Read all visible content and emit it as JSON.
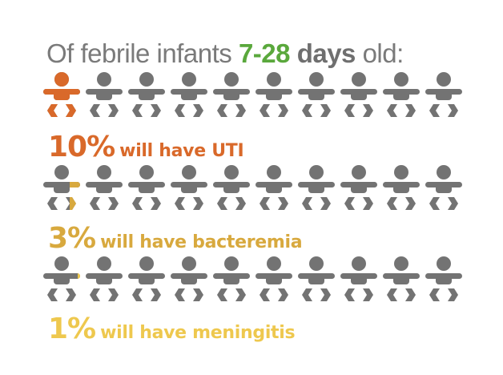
{
  "headline": {
    "prefix": "Of febrile infants ",
    "range": "7-28",
    "days": "days",
    "suffix": " old:"
  },
  "colors": {
    "icon_gray": "#737373",
    "uti": "#d9692a",
    "bacteremia": "#d8a93e",
    "meningitis": "#eec84e",
    "headline_green": "#5aa83c",
    "headline_gray": "#7a7a7a"
  },
  "icon_name": "baby-icon",
  "icons_per_row": 10,
  "rows": [
    {
      "id": "uti",
      "percent": "10%",
      "label": "will have UTI",
      "highlight_fraction": 1.0,
      "color": "#d9692a"
    },
    {
      "id": "bacteremia",
      "percent": "3%",
      "label": "will have bacteremia",
      "highlight_fraction": 0.3,
      "color": "#d8a93e"
    },
    {
      "id": "meningitis",
      "percent": "1%",
      "label": "will have meningitis",
      "highlight_fraction": 0.1,
      "color": "#eec84e"
    }
  ]
}
